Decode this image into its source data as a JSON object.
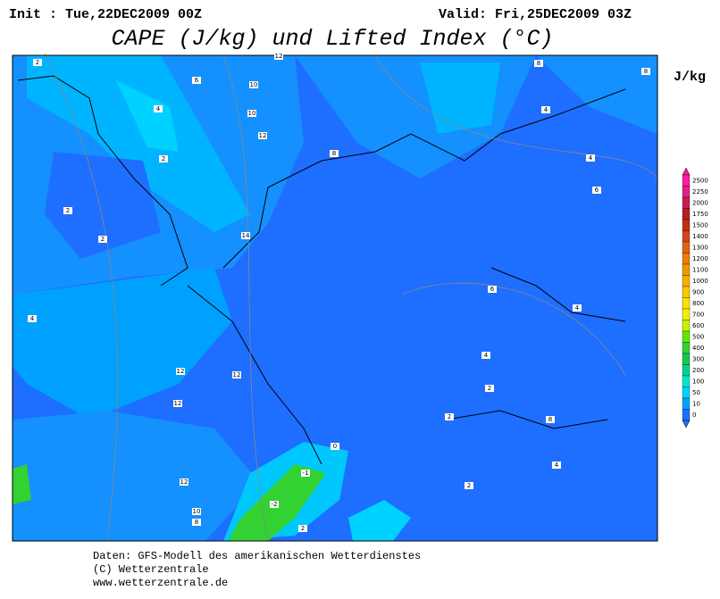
{
  "header": {
    "init": "Init : Tue,22DEC2009 00Z",
    "valid": "Valid: Fri,25DEC2009 03Z",
    "title": "CAPE (J/kg) und Lifted Index (°C)"
  },
  "colorbar": {
    "unit": "J/kg",
    "levels": [
      2500,
      2250,
      2000,
      1750,
      1500,
      1400,
      1300,
      1200,
      1100,
      1000,
      900,
      800,
      700,
      600,
      500,
      400,
      300,
      200,
      100,
      50,
      10,
      0
    ],
    "colors": [
      "#ff1aa0",
      "#e0208a",
      "#c81e50",
      "#b41e1e",
      "#c82814",
      "#d2461e",
      "#e1640a",
      "#eb7d00",
      "#f09600",
      "#f5af00",
      "#fac800",
      "#fae100",
      "#f0f000",
      "#c8f000",
      "#64e600",
      "#32d232",
      "#14c850",
      "#00d28c",
      "#00e6c8",
      "#00d2ff",
      "#00a0ff",
      "#1e6eff"
    ]
  },
  "contour_labels": [
    2,
    6,
    10,
    4,
    10,
    12,
    2,
    8,
    2,
    2,
    14,
    4,
    12,
    12,
    12,
    12,
    10,
    8,
    8,
    8,
    4,
    4,
    6,
    6,
    4,
    4,
    2,
    2,
    8,
    4,
    2,
    0,
    -1,
    -2,
    2,
    12
  ],
  "footer": {
    "source": "Daten: GFS-Modell des amerikanischen Wetterdienstes",
    "copyright": "(C) Wetterzentrale",
    "url": "www.wetterzentrale.de"
  }
}
